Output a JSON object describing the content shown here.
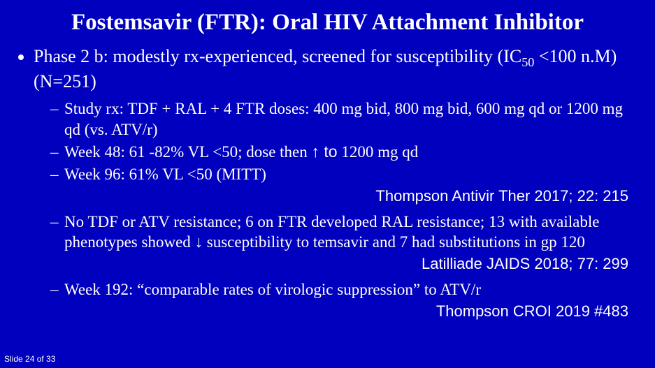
{
  "title": "Fostemsavir (FTR): Oral HIV Attachment Inhibitor",
  "bullet1_pre": "Phase 2 b:  modestly rx-experienced, screened for susceptibility (IC",
  "bullet1_sub": "50",
  "bullet1_post": " <100 n.M) (N=251)",
  "sub1": "Study rx: TDF + RAL + 4 FTR doses: 400 mg bid, 800 mg bid, 600 mg qd or 1200 mg qd (vs. ATV/r)",
  "sub2_pre": "Week 48:            61 -82% VL <50; dose then ",
  "sub2_arrow": "↑ to",
  "sub2_post": " 1200 mg qd",
  "sub3": "Week 96:            61% VL <50 (MITT)",
  "ref1": "Thompson Antivir Ther 2017; 22: 215",
  "sub4": "No TDF or ATV resistance; 6 on FTR developed RAL resistance; 13 with available phenotypes showed ↓ susceptibility to temsavir and 7 had substitutions in gp 120",
  "ref2": "Latilliade JAIDS 2018; 77: 299",
  "sub5": "Week 192: “comparable rates of virologic suppression” to ATV/r",
  "ref3": "Thompson CROI 2019 #483",
  "footer": "Slide 24 of 33"
}
